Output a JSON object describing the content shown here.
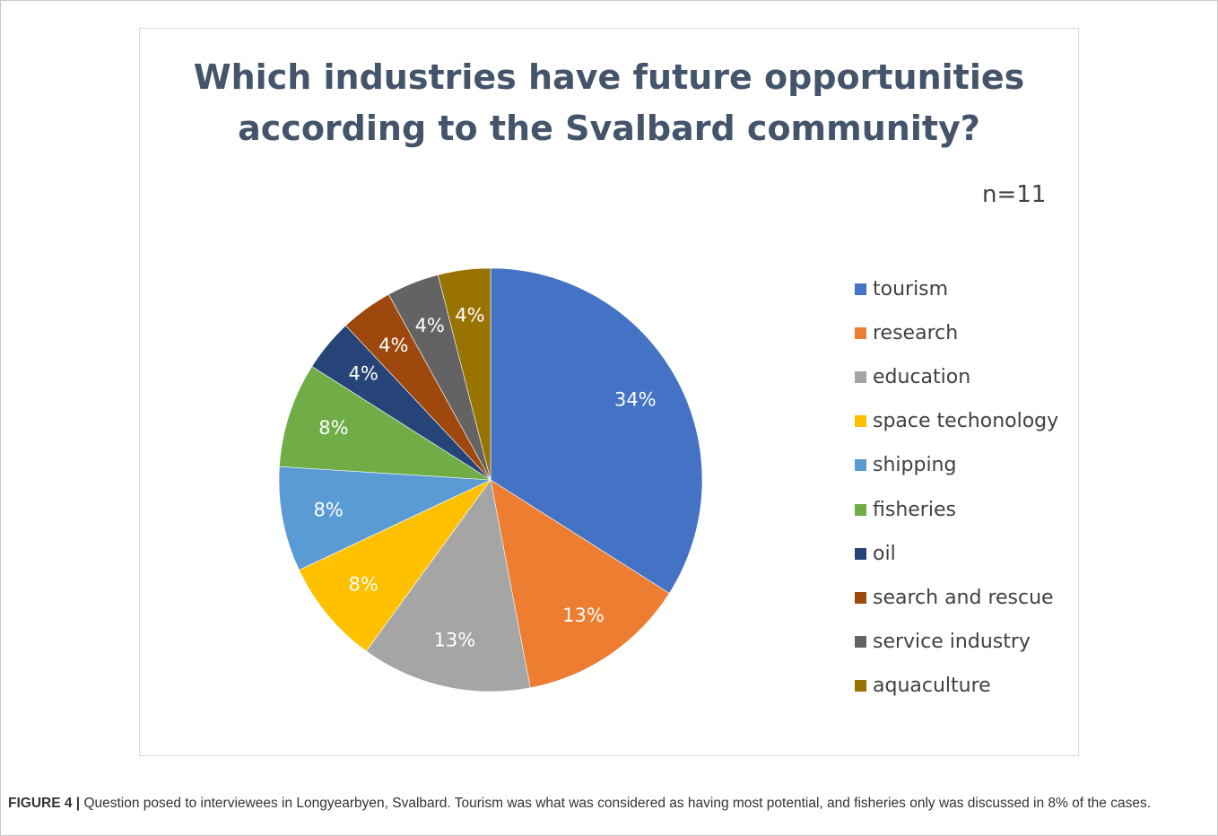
{
  "chart_data": {
    "type": "pie",
    "title": "Which industries have future opportunities according to the Svalbard community?",
    "annotation": "n=11",
    "slices": [
      {
        "label": "tourism",
        "value": 34,
        "display": "34%",
        "color": "#4472c4"
      },
      {
        "label": "research",
        "value": 13,
        "display": "13%",
        "color": "#ed7d31"
      },
      {
        "label": "education",
        "value": 13,
        "display": "13%",
        "color": "#a5a5a5"
      },
      {
        "label": "space techonology",
        "value": 8,
        "display": "8%",
        "color": "#ffc000"
      },
      {
        "label": "shipping",
        "value": 8,
        "display": "8%",
        "color": "#5b9bd5"
      },
      {
        "label": "fisheries",
        "value": 8,
        "display": "8%",
        "color": "#70ad47"
      },
      {
        "label": "oil",
        "value": 4,
        "display": "4%",
        "color": "#264478"
      },
      {
        "label": "search and rescue",
        "value": 4,
        "display": "4%",
        "color": "#9e480e"
      },
      {
        "label": "service industry",
        "value": 4,
        "display": "4%",
        "color": "#636363"
      },
      {
        "label": "aquaculture",
        "value": 4,
        "display": "4%",
        "color": "#997300"
      }
    ],
    "legend_position": "right"
  },
  "caption": {
    "label": "FIGURE 4 |",
    "text": " Question posed to interviewees in Longyearbyen, Svalbard. Tourism was what was considered as having most potential, and fisheries only was discussed in 8% of the cases."
  }
}
